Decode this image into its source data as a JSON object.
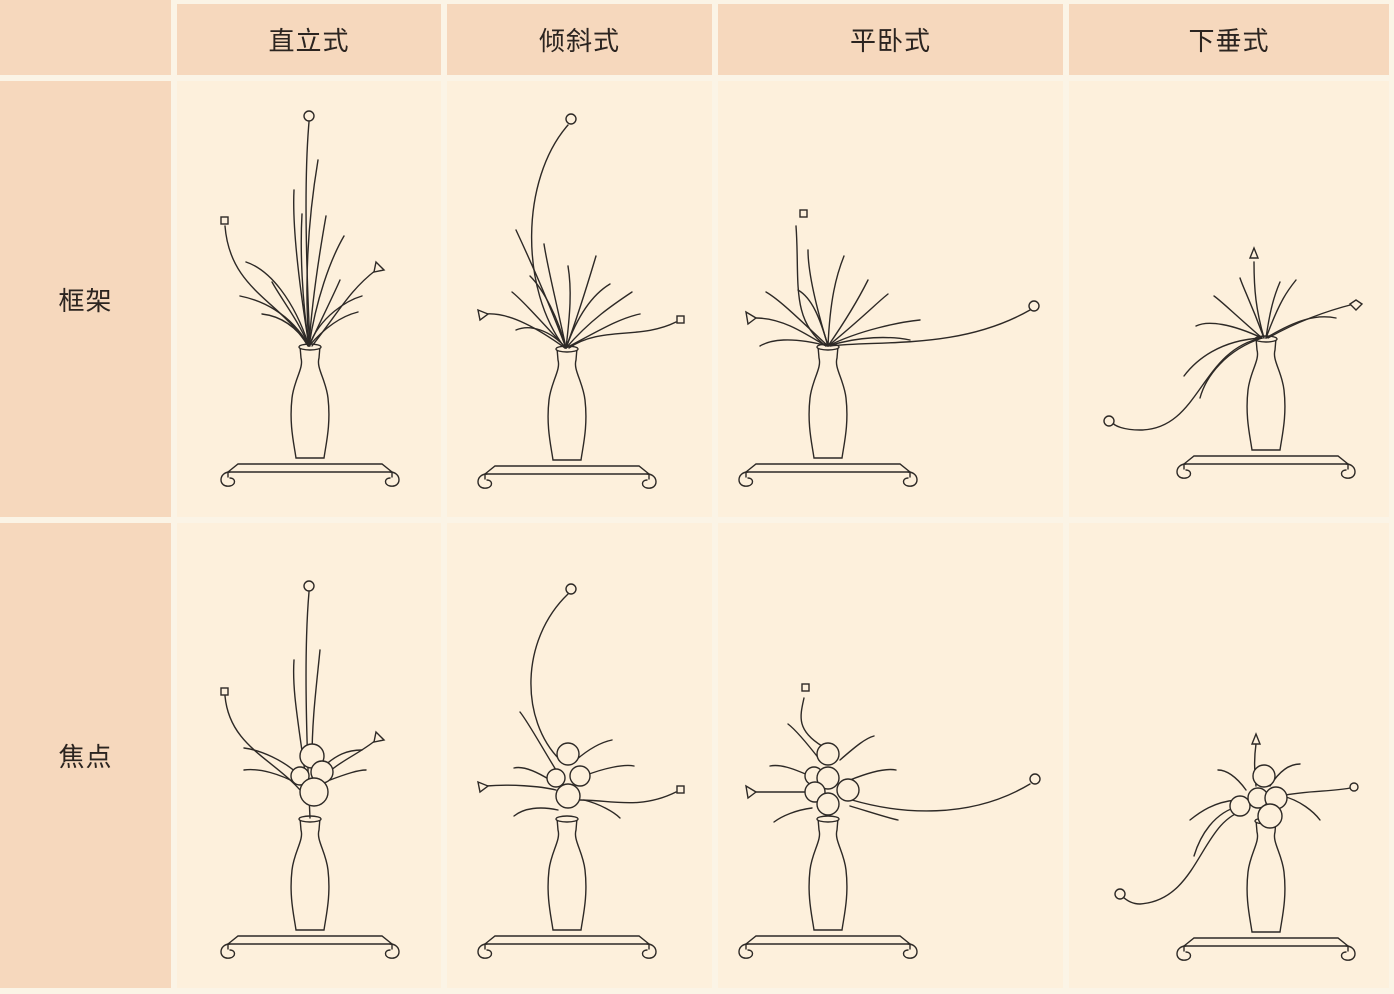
{
  "columns": [
    "直立式",
    "倾斜式",
    "平卧式",
    "下垂式"
  ],
  "rows": [
    "框架",
    "焦点"
  ],
  "colors": {
    "header_bg": "#f6d8bd",
    "panel_bg": "#fdf0dc",
    "line": "#2d2926"
  }
}
